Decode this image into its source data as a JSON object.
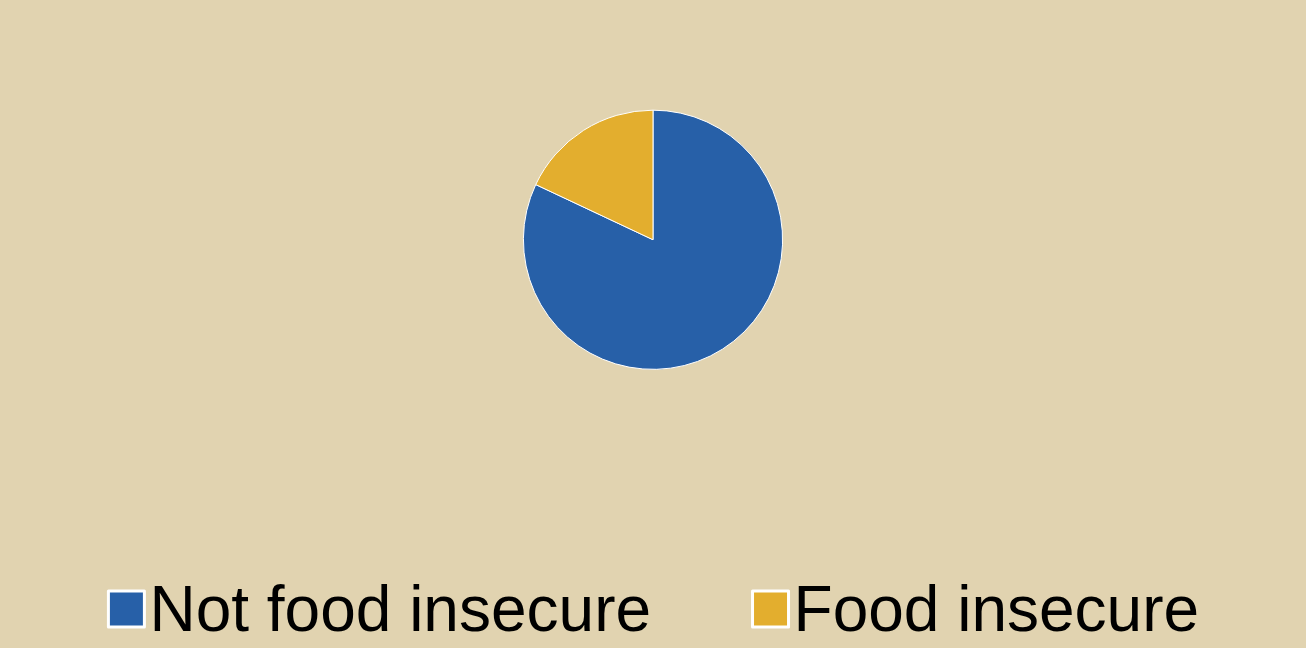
{
  "chart_data": {
    "type": "pie",
    "categories": [
      "Not food insecure",
      "Food insecure"
    ],
    "values": [
      82,
      18
    ],
    "colors": [
      "#2760a8",
      "#e3ae2e"
    ],
    "legend": "bottom"
  }
}
